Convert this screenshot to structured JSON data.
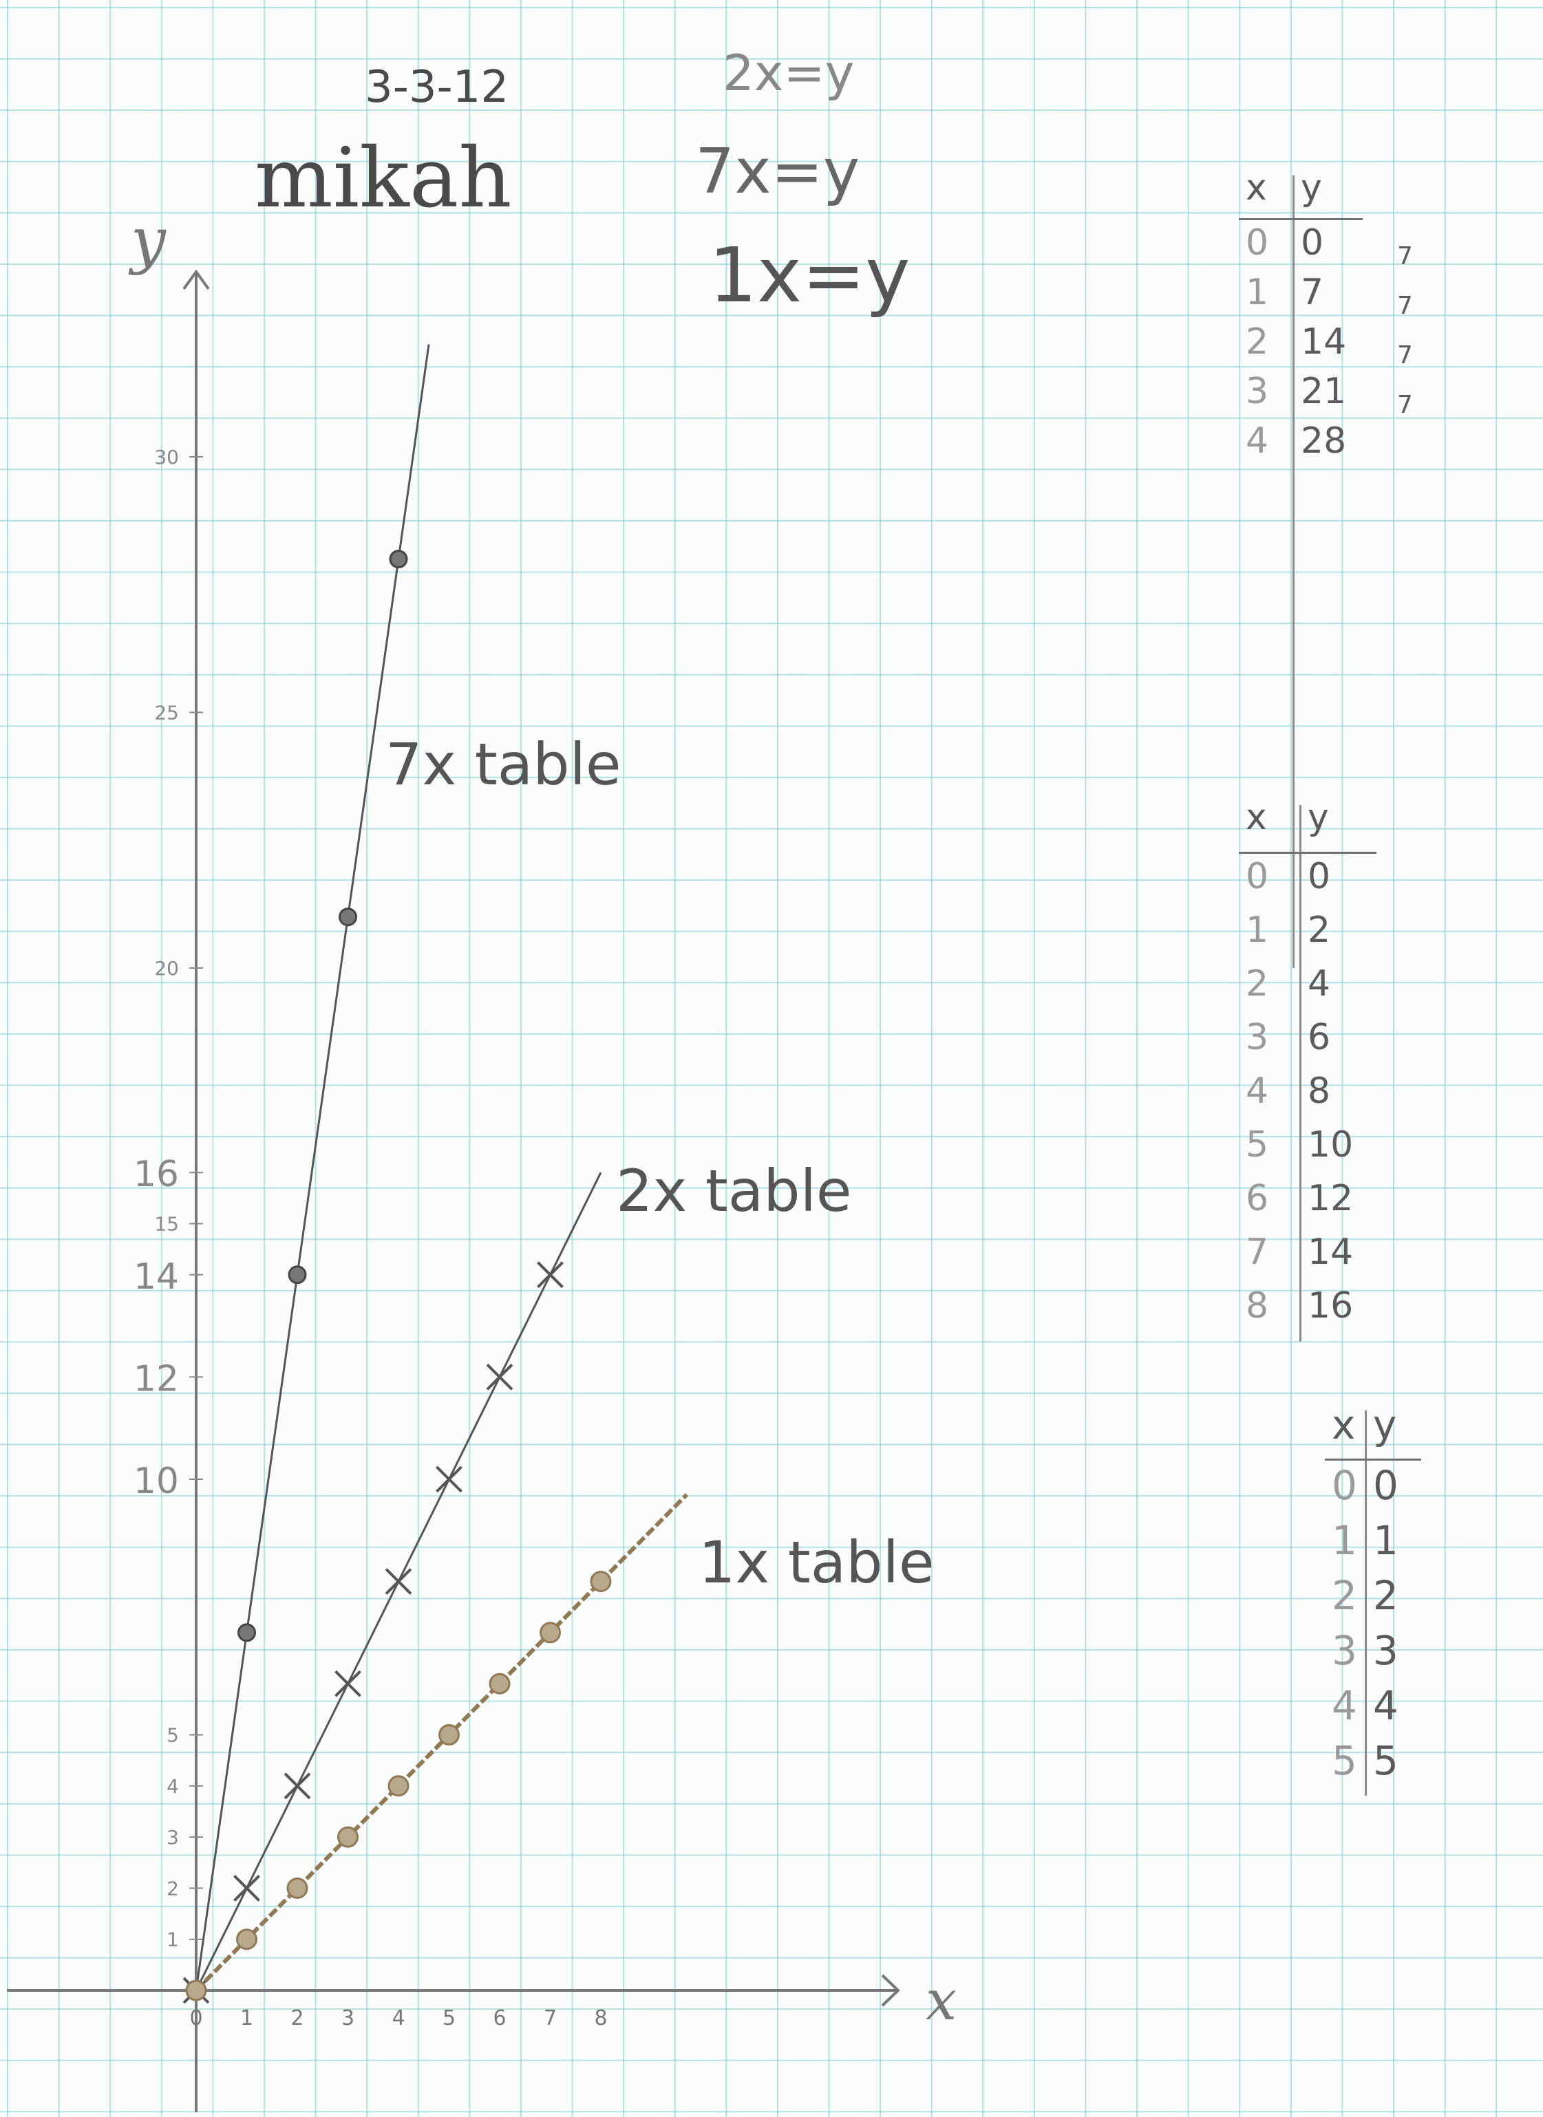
{
  "header": {
    "date": "3-3-12",
    "name": "mikah",
    "eq1": "2x=y",
    "eq2": "7x=y",
    "eq3": "1x=y"
  },
  "chart_data": {
    "type": "line",
    "xlabel": "x",
    "ylabel": "y",
    "x_ticks": [
      "0",
      "1",
      "2",
      "3",
      "4",
      "5",
      "6",
      "7",
      "8"
    ],
    "y_ticks": [
      {
        "value": 1,
        "label": "1"
      },
      {
        "value": 2,
        "label": "2"
      },
      {
        "value": 3,
        "label": "3"
      },
      {
        "value": 4,
        "label": "4"
      },
      {
        "value": 5,
        "label": "5"
      },
      {
        "value": 10,
        "label": "10"
      },
      {
        "value": 12,
        "label": "12"
      },
      {
        "value": 14,
        "label": "14"
      },
      {
        "value": 15,
        "label": "15"
      },
      {
        "value": 16,
        "label": "16"
      },
      {
        "value": 20,
        "label": "20"
      },
      {
        "value": 25,
        "label": "25"
      },
      {
        "value": 30,
        "label": "30"
      }
    ],
    "series": [
      {
        "name": "7x table",
        "color": "#555555",
        "marker": "dot",
        "x": [
          0,
          1,
          2,
          3,
          4
        ],
        "y": [
          0,
          7,
          14,
          21,
          28
        ],
        "line_to_x": 4.6
      },
      {
        "name": "2x table",
        "color": "#555555",
        "marker": "cross",
        "x": [
          0,
          1,
          2,
          3,
          4,
          5,
          6,
          7
        ],
        "y": [
          0,
          2,
          4,
          6,
          8,
          10,
          12,
          14
        ],
        "line_to_x": 8.0
      },
      {
        "name": "1x table",
        "color": "#8f7a55",
        "marker": "dot",
        "x": [
          0,
          1,
          2,
          3,
          4,
          5,
          6,
          7,
          8
        ],
        "y": [
          0,
          1,
          2,
          3,
          4,
          5,
          6,
          7,
          8
        ],
        "line_to_x": 9.7
      }
    ]
  },
  "tables": [
    {
      "header": [
        "x",
        "y"
      ],
      "rows": [
        [
          "0",
          "0"
        ],
        [
          "1",
          "7"
        ],
        [
          "2",
          "14"
        ],
        [
          "3",
          "21"
        ],
        [
          "4",
          "28"
        ]
      ],
      "notes": [
        "7",
        "7",
        "7",
        "7"
      ]
    },
    {
      "header": [
        "x",
        "y"
      ],
      "rows": [
        [
          "0",
          "0"
        ],
        [
          "1",
          "2"
        ],
        [
          "2",
          "4"
        ],
        [
          "3",
          "6"
        ],
        [
          "4",
          "8"
        ],
        [
          "5",
          "10"
        ],
        [
          "6",
          "12"
        ],
        [
          "7",
          "14"
        ],
        [
          "8",
          "16"
        ]
      ]
    },
    {
      "header": [
        "x",
        "y"
      ],
      "rows": [
        [
          "0",
          "0"
        ],
        [
          "1",
          "1"
        ],
        [
          "2",
          "2"
        ],
        [
          "3",
          "3"
        ],
        [
          "4",
          "4"
        ],
        [
          "5",
          "5"
        ]
      ]
    }
  ]
}
